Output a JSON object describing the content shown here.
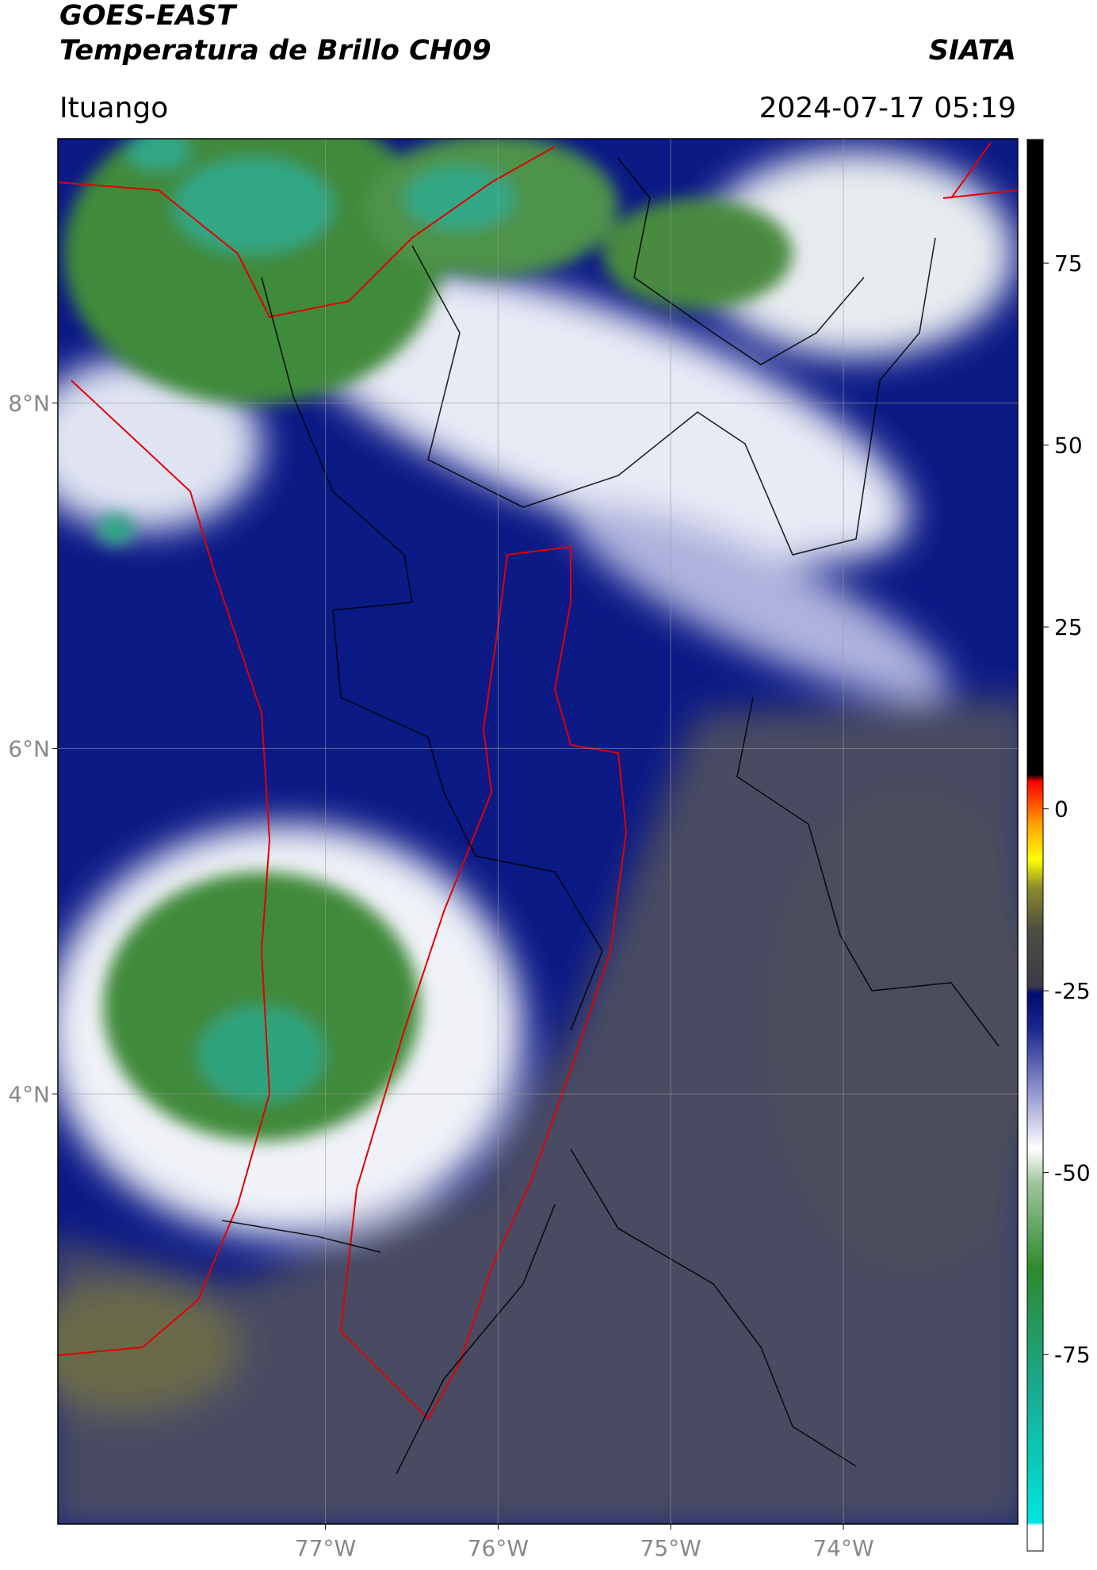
{
  "header": {
    "title": "GOES-EAST",
    "subtitle": "Temperatura de Brillo CH09",
    "source": "SIATA",
    "location": "Ituango",
    "timestamp": "2024-07-17 05:19"
  },
  "map": {
    "xlim": [
      -78.55,
      -72.99
    ],
    "ylim": [
      1.51,
      9.53
    ],
    "xticks": [
      {
        "value": -77,
        "label": "77°W"
      },
      {
        "value": -76,
        "label": "76°W"
      },
      {
        "value": -75,
        "label": "75°W"
      },
      {
        "value": -74,
        "label": "74°W"
      }
    ],
    "yticks": [
      {
        "value": 4,
        "label": "4°N"
      },
      {
        "value": 6,
        "label": "6°N"
      },
      {
        "value": 8,
        "label": "8°N"
      }
    ],
    "grid": true
  },
  "colorbar": {
    "lim": [
      -102,
      92
    ],
    "ticks": [
      -75,
      -50,
      -25,
      0,
      25,
      50,
      75
    ]
  }
}
